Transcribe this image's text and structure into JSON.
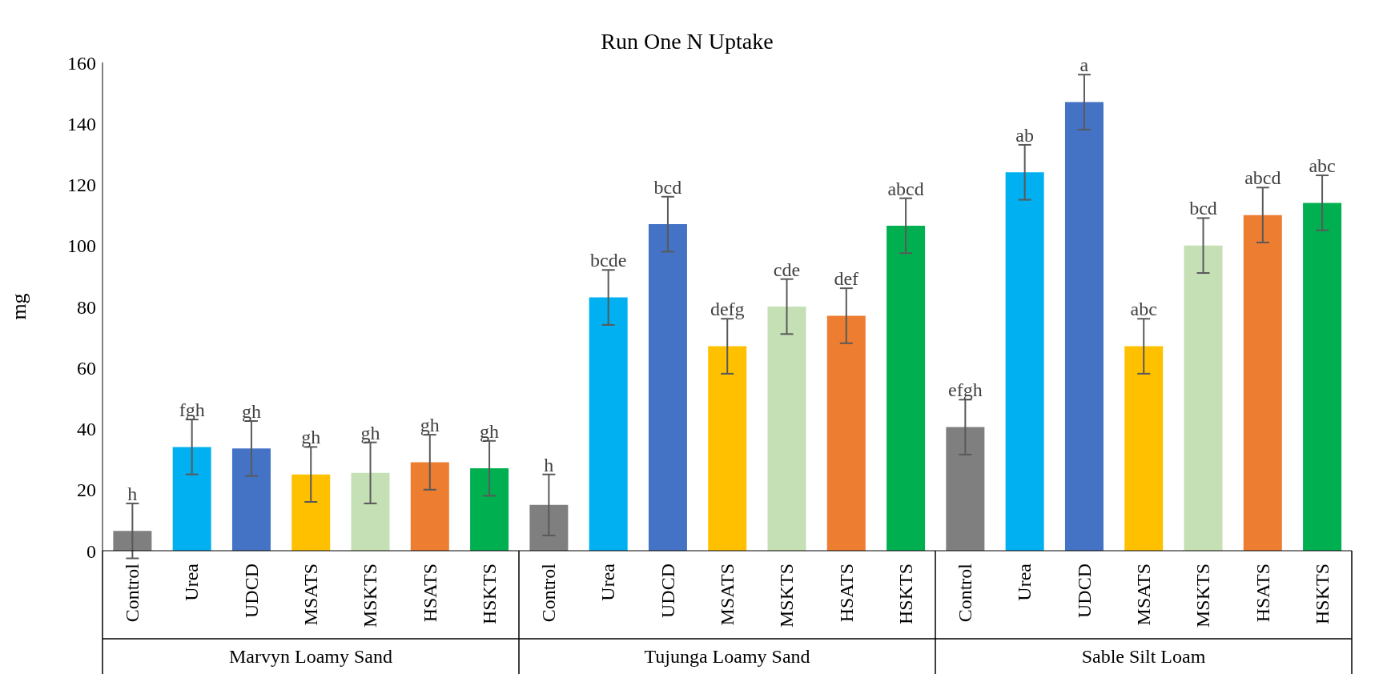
{
  "chart_data": {
    "type": "bar",
    "title": "Run One N Uptake",
    "ylabel": "mg",
    "categories": [
      "Control",
      "Urea",
      "UDCD",
      "MSATS",
      "MSKTS",
      "HSATS",
      "HSKTS",
      "Control",
      "Urea",
      "UDCD",
      "MSATS",
      "MSKTS",
      "HSATS",
      "HSKTS",
      "Control",
      "Urea",
      "UDCD",
      "MSATS",
      "MSKTS",
      "HSATS",
      "HSKTS"
    ],
    "values": [
      6.5,
      34,
      33.5,
      25,
      25.5,
      29,
      27,
      15,
      83,
      107,
      67,
      80,
      77,
      106.5,
      40.5,
      124,
      147,
      67,
      100,
      110,
      114
    ],
    "errors": [
      9,
      9,
      9,
      9,
      10,
      9,
      9,
      10,
      9,
      9,
      9,
      9,
      9,
      9,
      9,
      9,
      9,
      9,
      9,
      9,
      9
    ],
    "value_labels": [
      "h",
      "fgh",
      "gh",
      "gh",
      "gh",
      "gh",
      "gh",
      "h",
      "bcde",
      "bcd",
      "defg",
      "cde",
      "def",
      "abcd",
      "efgh",
      "ab",
      "a",
      "abc",
      "bcd",
      "abcd",
      "abc"
    ],
    "colors": [
      "#7f7f7f",
      "#00b0f0",
      "#4472c4",
      "#ffc000",
      "#c5e0b4",
      "#ed7d31",
      "#00b050",
      "#7f7f7f",
      "#00b0f0",
      "#4472c4",
      "#ffc000",
      "#c5e0b4",
      "#ed7d31",
      "#00b050",
      "#7f7f7f",
      "#00b0f0",
      "#4472c4",
      "#ffc000",
      "#c5e0b4",
      "#ed7d31",
      "#00b050"
    ],
    "annotations": [
      "Marvyn Loamy Sand",
      "Tujunga Loamy Sand",
      "Sable Silt Loam"
    ],
    "ylim": [
      0,
      160
    ],
    "yticks": [
      0,
      20,
      40,
      60,
      80,
      100,
      120,
      140,
      160
    ],
    "grid": false,
    "legend": false
  }
}
